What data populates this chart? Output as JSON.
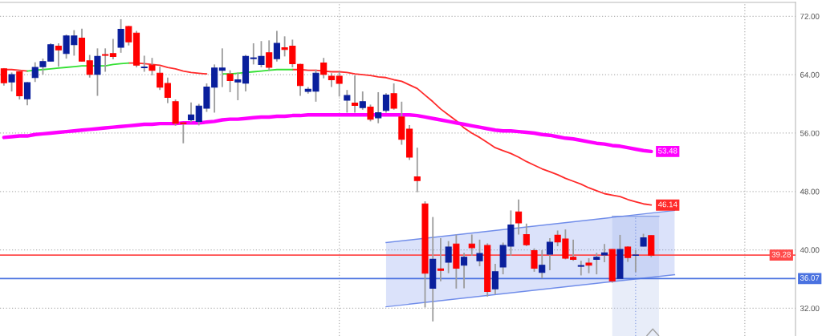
{
  "chart_data": {
    "type": "candlestick",
    "categories": [
      null,
      null,
      null,
      null,
      null,
      null,
      null,
      null,
      null,
      null,
      null,
      null,
      null,
      null,
      null,
      null,
      null,
      null,
      null,
      null,
      null,
      null,
      null,
      null,
      null,
      null,
      null,
      null,
      null,
      null,
      null,
      null,
      null,
      null,
      null,
      null,
      null,
      null,
      null,
      null,
      null,
      null,
      null,
      null,
      null,
      null,
      null,
      null,
      null,
      null,
      null,
      null,
      null,
      null,
      null,
      null,
      null,
      null,
      null,
      null,
      null,
      null,
      null,
      null,
      null,
      null,
      null,
      null,
      null,
      null,
      null,
      null,
      null,
      null,
      null,
      null,
      null,
      null,
      null,
      null,
      null,
      null,
      null,
      null,
      null,
      null,
      null,
      null,
      null,
      null,
      null,
      null,
      null,
      null,
      null,
      null,
      null,
      null,
      null,
      null,
      null,
      null
    ],
    "ohlc": [
      [
        64.8,
        64.9,
        62.5,
        62.9
      ],
      [
        63.0,
        64.3,
        61.7,
        64.0
      ],
      [
        64.4,
        64.6,
        60.6,
        61.1
      ],
      [
        60.7,
        63.0,
        59.8,
        62.9
      ],
      [
        63.6,
        65.7,
        63.0,
        65.0
      ],
      [
        65.1,
        66.2,
        64.0,
        65.8
      ],
      [
        65.85,
        68.3,
        65.8,
        68.1
      ],
      [
        67.9,
        68.3,
        65.1,
        67.4
      ],
      [
        66.9,
        69.5,
        66.2,
        69.3
      ],
      [
        68.1,
        70.1,
        66.6,
        69.3
      ],
      [
        69.0,
        70.3,
        65.8,
        65.85
      ],
      [
        65.9,
        66.7,
        63.6,
        64.05
      ],
      [
        64.05,
        67.6,
        61.1,
        66.5
      ],
      [
        66.75,
        67.6,
        64.4,
        66.65
      ],
      [
        66.9,
        68.9,
        66.1,
        66.5
      ],
      [
        67.75,
        71.6,
        67.0,
        70.2
      ],
      [
        70.6,
        70.7,
        68.0,
        68.5
      ],
      [
        69.7,
        70.0,
        65.0,
        65.3
      ],
      [
        64.95,
        66.6,
        64.4,
        65.05
      ],
      [
        65.3,
        66.3,
        63.9,
        64.6
      ],
      [
        64.2,
        65.1,
        61.9,
        62.3
      ],
      [
        62.8,
        63.6,
        60.1,
        60.9
      ],
      [
        60.3,
        60.6,
        57.0,
        57.35
      ],
      [
        57.4,
        57.5,
        54.6,
        57.3
      ],
      [
        57.8,
        60.2,
        57.5,
        58.5
      ],
      [
        57.6,
        60.0,
        57.05,
        59.7
      ],
      [
        59.4,
        62.8,
        58.9,
        62.3
      ],
      [
        62.3,
        65.4,
        58.8,
        64.9
      ],
      [
        64.6,
        67.6,
        62.3,
        64.9
      ],
      [
        64.1,
        64.6,
        61.6,
        63.2
      ],
      [
        63.0,
        64.3,
        60.5,
        63.3
      ],
      [
        62.85,
        66.7,
        61.7,
        66.5
      ],
      [
        66.2,
        68.3,
        65.4,
        66.3
      ],
      [
        65.4,
        68.6,
        65.0,
        66.5
      ],
      [
        67.0,
        68.7,
        64.5,
        65.0
      ],
      [
        66.2,
        70.0,
        65.8,
        68.3
      ],
      [
        67.7,
        69.25,
        66.5,
        67.45
      ],
      [
        67.9,
        68.8,
        65.0,
        65.5
      ],
      [
        65.4,
        65.5,
        61.1,
        62.5
      ],
      [
        61.7,
        62.3,
        61.4,
        62.0
      ],
      [
        61.75,
        64.7,
        60.3,
        64.2
      ],
      [
        65.6,
        66.3,
        63.5,
        64.05
      ],
      [
        63.8,
        64.2,
        62.3,
        63.3
      ],
      [
        63.8,
        64.4,
        61.0,
        62.8
      ],
      [
        60.5,
        61.9,
        58.8,
        61.15
      ],
      [
        60.1,
        63.9,
        58.8,
        59.8
      ],
      [
        59.5,
        61.7,
        59.2,
        60.3
      ],
      [
        59.55,
        59.9,
        57.6,
        57.9
      ],
      [
        58.1,
        61.6,
        57.35,
        58.8
      ],
      [
        59.1,
        61.45,
        58.8,
        61.2
      ],
      [
        61.4,
        62.8,
        59.2,
        59.4
      ],
      [
        58.2,
        60.3,
        54.4,
        55.15
      ],
      [
        56.55,
        57.1,
        52.3,
        52.7
      ],
      [
        50.0,
        54.0,
        47.9,
        49.5
      ],
      [
        46.3,
        46.65,
        32.1,
        36.8
      ],
      [
        34.75,
        44.5,
        30.2,
        38.7
      ],
      [
        37.4,
        41.6,
        35.7,
        37.2
      ],
      [
        38.3,
        41.2,
        36.8,
        40.4
      ],
      [
        40.8,
        42.1,
        34.7,
        37.5
      ],
      [
        37.9,
        39.6,
        34.75,
        39.0
      ],
      [
        40.8,
        42.1,
        39.2,
        40.3
      ],
      [
        38.5,
        41.4,
        37.75,
        39.5
      ],
      [
        40.6,
        40.9,
        33.6,
        34.3
      ],
      [
        34.65,
        38.1,
        33.9,
        37.0
      ],
      [
        37.65,
        41.0,
        36.65,
        40.6
      ],
      [
        40.5,
        45.4,
        39.2,
        43.4
      ],
      [
        45.2,
        46.9,
        42.1,
        43.7
      ],
      [
        42.1,
        43.6,
        40.5,
        40.7
      ],
      [
        39.9,
        40.2,
        37.0,
        37.5
      ],
      [
        36.9,
        39.95,
        36.1,
        37.9
      ],
      [
        39.4,
        41.6,
        37.2,
        41.05
      ],
      [
        42.0,
        42.65,
        40.5,
        41.1
      ],
      [
        41.5,
        42.8,
        38.7,
        38.85
      ],
      [
        39.0,
        41.4,
        38.5,
        38.7
      ],
      [
        37.75,
        38.5,
        36.5,
        37.85
      ],
      [
        38.2,
        38.85,
        36.8,
        37.9
      ],
      [
        38.7,
        39.6,
        36.65,
        39.0
      ],
      [
        39.3,
        40.8,
        38.3,
        39.6
      ],
      [
        40.05,
        40.1,
        35.5,
        35.75
      ],
      [
        36.1,
        42.05,
        36.05,
        40.05
      ],
      [
        40.4,
        40.5,
        38.35,
        38.95
      ],
      [
        39.25,
        40.0,
        36.95,
        39.3
      ],
      [
        40.5,
        42.2,
        40.45,
        41.65
      ],
      [
        41.95,
        42.0,
        39.0,
        39.28
      ],
      null,
      null,
      null,
      null,
      null,
      null,
      null,
      null,
      null,
      null,
      null,
      null,
      null,
      null,
      null,
      null,
      null,
      null
    ],
    "colors": [
      "#ff0000",
      "#0a1f9c",
      "#ff0000",
      "#0a1f9c",
      "#0a1f9c",
      "#0a1f9c",
      "#0a1f9c",
      "#ff0000",
      "#0a1f9c",
      "#0a1f9c",
      "#ff0000",
      "#ff0000",
      "#0a1f9c",
      "#ff0000",
      "#ff0000",
      "#0a1f9c",
      "#ff0000",
      "#ff0000",
      "#0a1f9c",
      "#ff0000",
      "#ff0000",
      "#ff0000",
      "#ff0000",
      "#ff0000",
      "#0a1f9c",
      "#0a1f9c",
      "#0a1f9c",
      "#0a1f9c",
      "#0a1f9c",
      "#ff0000",
      "#0a1f9c",
      "#0a1f9c",
      "#0a1f9c",
      "#0a1f9c",
      "#ff0000",
      "#0a1f9c",
      "#ff0000",
      "#ff0000",
      "#ff0000",
      "#0a1f9c",
      "#0a1f9c",
      "#ff0000",
      "#ff0000",
      "#ff0000",
      "#0a1f9c",
      "#ff0000",
      "#0a1f9c",
      "#ff0000",
      "#0a1f9c",
      "#0a1f9c",
      "#ff0000",
      "#ff0000",
      "#ff0000",
      "#ff0000",
      "#ff0000",
      "#0a1f9c",
      "#ff0000",
      "#0a1f9c",
      "#ff0000",
      "#0a1f9c",
      "#ff0000",
      "#0a1f9c",
      "#ff0000",
      "#0a1f9c",
      "#0a1f9c",
      "#0a1f9c",
      "#ff0000",
      "#ff0000",
      "#ff0000",
      "#0a1f9c",
      "#0a1f9c",
      "#ff0000",
      "#ff0000",
      "#ff0000",
      "#0a1f9c",
      "#ff0000",
      "#0a1f9c",
      "#0a1f9c",
      "#ff0000",
      "#0a1f9c",
      "#ff0000",
      "#0a1f9c",
      "#0a1f9c",
      "#ff0000",
      null,
      null,
      null,
      null,
      null,
      null,
      null,
      null,
      null,
      null,
      null,
      null,
      null,
      null,
      null,
      null,
      null,
      null
    ],
    "series": [
      {
        "type": "line",
        "color": "#ff2a2a",
        "values": [
          64.7,
          64.7,
          64.6,
          64.5,
          null,
          null,
          null,
          null,
          null,
          null,
          null,
          null,
          null,
          null,
          null,
          null,
          65.6,
          65.6,
          65.5,
          65.4,
          65.3,
          65.0,
          64.8,
          64.5,
          64.3,
          64.2,
          64.1,
          null,
          null,
          null,
          null,
          null,
          null,
          null,
          null,
          null,
          null,
          64.7,
          64.7,
          64.6,
          64.6,
          64.5,
          64.4,
          64.4,
          64.3,
          64.1,
          64.0,
          63.9,
          63.7,
          63.6,
          63.3,
          63.1,
          62.6,
          62.1,
          61.2,
          60.3,
          59.3,
          58.5,
          57.7,
          56.7,
          56.0,
          55.4,
          54.7,
          54.0,
          53.6,
          53.2,
          52.7,
          52.1,
          51.6,
          51.1,
          50.7,
          50.3,
          49.8,
          49.4,
          49.0,
          48.5,
          48.1,
          47.7,
          47.5,
          47.3,
          46.9,
          46.6,
          46.3,
          46.14,
          null,
          null,
          null,
          null,
          null,
          null,
          null,
          null,
          null,
          null,
          null,
          null,
          null,
          null,
          null,
          null,
          null,
          null
        ],
        "value_labels": [
          null,
          null,
          null,
          null,
          null,
          null,
          null,
          null,
          null,
          null,
          null,
          null,
          null,
          null,
          null,
          null,
          null,
          null,
          null,
          null,
          null,
          null,
          null,
          null,
          null,
          null,
          null,
          null,
          null,
          null,
          null,
          null,
          null,
          null,
          null,
          null,
          null,
          null,
          null,
          null,
          null,
          null,
          null,
          null,
          null,
          null,
          null,
          null,
          null,
          null,
          null,
          null,
          null,
          null,
          null,
          null,
          null,
          null,
          null,
          null,
          null,
          null,
          null,
          null,
          null,
          null,
          null,
          null,
          null,
          null,
          null,
          null,
          null,
          null,
          null,
          null,
          null,
          null,
          null,
          null,
          null,
          null,
          null,
          "46.14",
          null,
          null,
          null,
          null,
          null,
          null,
          null,
          null,
          null,
          null,
          null,
          null,
          null,
          null,
          null,
          null,
          null,
          null
        ]
      },
      {
        "type": "line",
        "color": "#33e033",
        "values": [
          null,
          null,
          null,
          64.5,
          64.6,
          64.7,
          64.8,
          64.9,
          65.0,
          65.1,
          65.2,
          65.2,
          65.2,
          65.2,
          65.4,
          65.5,
          65.6,
          null,
          null,
          null,
          null,
          null,
          null,
          null,
          null,
          null,
          null,
          null,
          64.1,
          64.1,
          64.2,
          64.3,
          64.4,
          64.5,
          64.6,
          64.7,
          64.7,
          64.7,
          null,
          null,
          null,
          null,
          null,
          null,
          null,
          null,
          null,
          null,
          null,
          null,
          null,
          null,
          null,
          null,
          null,
          null,
          null,
          null,
          null,
          null,
          null,
          null,
          null,
          null,
          null,
          null,
          null,
          null,
          null,
          null,
          null,
          null,
          null,
          null,
          null,
          null,
          null,
          null,
          null,
          null,
          null,
          null,
          null,
          null,
          null,
          null,
          null,
          null,
          null,
          null,
          null,
          null,
          null,
          null,
          null,
          null,
          null,
          null,
          null,
          null,
          null,
          null
        ]
      },
      {
        "type": "line",
        "color": "#ff00ff",
        "values": [
          55.4,
          55.5,
          55.6,
          55.6,
          55.8,
          55.9,
          56.0,
          56.1,
          56.2,
          56.3,
          56.4,
          56.5,
          56.6,
          56.7,
          56.8,
          56.9,
          57.0,
          57.1,
          57.2,
          57.2,
          57.3,
          57.3,
          57.3,
          57.4,
          57.4,
          57.4,
          57.5,
          57.6,
          57.8,
          57.9,
          57.9,
          58.0,
          58.1,
          58.2,
          58.2,
          58.3,
          58.3,
          58.4,
          58.4,
          58.5,
          58.5,
          58.5,
          58.5,
          58.5,
          58.5,
          58.5,
          58.5,
          58.5,
          58.5,
          58.5,
          58.5,
          58.5,
          58.5,
          58.4,
          58.2,
          58.0,
          57.8,
          57.6,
          57.4,
          57.2,
          57.0,
          56.8,
          56.6,
          56.4,
          56.3,
          56.3,
          56.2,
          56.1,
          56.0,
          55.8,
          55.7,
          55.5,
          55.3,
          55.2,
          55.0,
          54.8,
          54.6,
          54.5,
          54.3,
          54.2,
          54.0,
          53.8,
          53.6,
          53.48,
          null,
          null,
          null,
          null,
          null,
          null,
          null,
          null,
          null,
          null,
          null,
          null,
          null,
          null,
          null,
          null,
          null,
          null
        ],
        "value_labels": [
          null,
          null,
          null,
          null,
          null,
          null,
          null,
          null,
          null,
          null,
          null,
          null,
          null,
          null,
          null,
          null,
          null,
          null,
          null,
          null,
          null,
          null,
          null,
          null,
          null,
          null,
          null,
          null,
          null,
          null,
          null,
          null,
          null,
          null,
          null,
          null,
          null,
          null,
          null,
          null,
          null,
          null,
          null,
          null,
          null,
          null,
          null,
          null,
          null,
          null,
          null,
          null,
          null,
          null,
          null,
          null,
          null,
          null,
          null,
          null,
          null,
          null,
          null,
          null,
          null,
          null,
          null,
          null,
          null,
          null,
          null,
          null,
          null,
          null,
          null,
          null,
          null,
          null,
          null,
          null,
          null,
          null,
          null,
          "53.48",
          null,
          null,
          null,
          null,
          null,
          null,
          null,
          null,
          null,
          null,
          null,
          null,
          null,
          null,
          null,
          null,
          null,
          null
        ]
      },
      {
        "type": "line",
        "color": "#5a7be6",
        "values": [
          null,
          null,
          null,
          null,
          null,
          null,
          null,
          null,
          null,
          null,
          null,
          null,
          null,
          null,
          null,
          null,
          null,
          null,
          null,
          null,
          null,
          null,
          null,
          null,
          null,
          null,
          null,
          null,
          null,
          null,
          null,
          null,
          null,
          null,
          null,
          null,
          null,
          null,
          null,
          null,
          null,
          null,
          null,
          null,
          null,
          null,
          null,
          null,
          null,
          41.0,
          null,
          null,
          null,
          null,
          null,
          null,
          null,
          null,
          null,
          null,
          null,
          null,
          null,
          null,
          null,
          null,
          null,
          null,
          null,
          null,
          null,
          null,
          null,
          null,
          null,
          null,
          null,
          null,
          null,
          null,
          null,
          null,
          null,
          null,
          null,
          null,
          45.4,
          null,
          null,
          null,
          null,
          null,
          null,
          null,
          null,
          null,
          null,
          null,
          null,
          null,
          null,
          null
        ],
        "lower": [
          null,
          null,
          null,
          null,
          null,
          null,
          null,
          null,
          null,
          null,
          null,
          null,
          null,
          null,
          null,
          null,
          null,
          null,
          null,
          null,
          null,
          null,
          null,
          null,
          null,
          null,
          null,
          null,
          null,
          null,
          null,
          null,
          null,
          null,
          null,
          null,
          null,
          null,
          null,
          null,
          null,
          null,
          null,
          null,
          null,
          null,
          null,
          null,
          null,
          32.2,
          null,
          null,
          null,
          null,
          null,
          null,
          null,
          null,
          null,
          null,
          null,
          null,
          null,
          null,
          null,
          null,
          null,
          null,
          null,
          null,
          null,
          null,
          null,
          null,
          null,
          null,
          null,
          null,
          null,
          null,
          null,
          null,
          null,
          null,
          null,
          null,
          36.6,
          null,
          null,
          null,
          null,
          null,
          null,
          null,
          null,
          null,
          null,
          null,
          null,
          null,
          null,
          null
        ],
        "upper": [
          null,
          null,
          null,
          null,
          null,
          null,
          null,
          null,
          null,
          null,
          null,
          null,
          null,
          null,
          null,
          null,
          null,
          null,
          null,
          null,
          null,
          null,
          null,
          null,
          null,
          null,
          null,
          null,
          null,
          null,
          null,
          null,
          null,
          null,
          null,
          null,
          null,
          null,
          null,
          null,
          null,
          null,
          null,
          null,
          null,
          null,
          null,
          null,
          null,
          41.0,
          null,
          null,
          null,
          null,
          null,
          null,
          null,
          null,
          null,
          null,
          null,
          null,
          null,
          null,
          null,
          null,
          null,
          null,
          null,
          null,
          null,
          null,
          null,
          null,
          null,
          null,
          null,
          null,
          null,
          null,
          null,
          null,
          null,
          null,
          null,
          null,
          45.4,
          null,
          null,
          null,
          null,
          null,
          null,
          null,
          null,
          null,
          null,
          null,
          null,
          null,
          null,
          null
        ]
      },
      {
        "type": "line",
        "color": "#5a7be6",
        "values": [
          null,
          null,
          null,
          null,
          null,
          null,
          null,
          null,
          null,
          null,
          null,
          null,
          null,
          null,
          null,
          null,
          null,
          null,
          null,
          null,
          null,
          null,
          null,
          null,
          null,
          null,
          null,
          null,
          null,
          null,
          null,
          null,
          null,
          null,
          null,
          null,
          null,
          null,
          null,
          null,
          null,
          null,
          null,
          null,
          null,
          null,
          null,
          null,
          null,
          32.2,
          null,
          null,
          null,
          null,
          null,
          null,
          null,
          null,
          null,
          null,
          null,
          null,
          null,
          null,
          null,
          null,
          null,
          null,
          null,
          null,
          null,
          null,
          null,
          null,
          null,
          null,
          null,
          null,
          null,
          null,
          null,
          null,
          null,
          null,
          null,
          null,
          36.6,
          null,
          null,
          null,
          null,
          null,
          null,
          null,
          null,
          null,
          null,
          null,
          null,
          null,
          null,
          null
        ]
      }
    ],
    "ref_lines": [
      {
        "axis": "y",
        "value": 39.28,
        "label": "39.28",
        "color": "#ff4a4a"
      },
      {
        "axis": "y",
        "value": 36.07,
        "label": "36.07",
        "color": "#4a72e0"
      }
    ],
    "ylim": [
      28.2,
      73.9
    ],
    "yticks": [
      {
        "value": 32,
        "label": "32.00"
      },
      {
        "value": 40,
        "label": "40.00"
      },
      {
        "value": 48,
        "label": "48.00"
      },
      {
        "value": 56,
        "label": "56.00"
      },
      {
        "value": 64,
        "label": "64.00"
      },
      {
        "value": 72,
        "label": "72.00"
      }
    ],
    "grid": true,
    "tick_labels": "y"
  }
}
